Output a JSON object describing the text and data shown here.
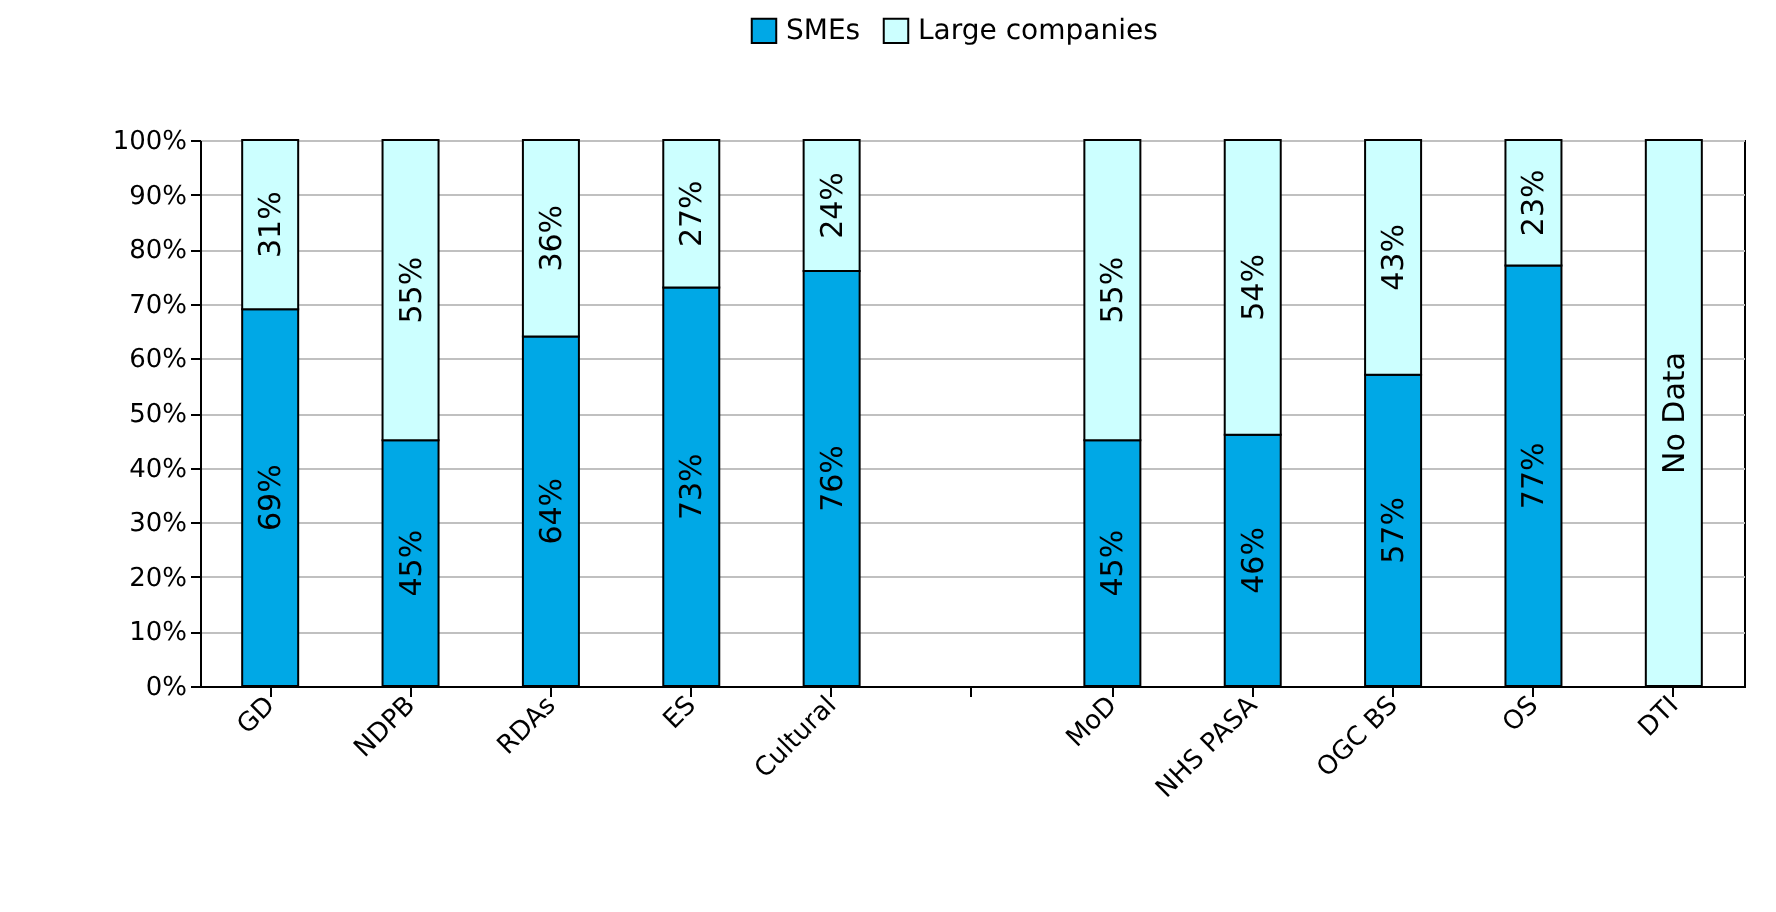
{
  "chart_data": {
    "type": "bar",
    "stacked": true,
    "categories": [
      "GD",
      "NDPB",
      "RDAs",
      "ES",
      "Cultural",
      null,
      "MoD",
      "NHS PASA",
      "OGC BS",
      "OS",
      "DTI"
    ],
    "series": [
      {
        "name": "SMEs",
        "color": "#00a8e6",
        "values": [
          69,
          45,
          64,
          73,
          76,
          null,
          45,
          46,
          57,
          77,
          null
        ],
        "value_labels": [
          "69%",
          "45%",
          "64%",
          "73%",
          "76%",
          null,
          "45%",
          "46%",
          "57%",
          "77%",
          null
        ]
      },
      {
        "name": "Large companies",
        "color": "#ccffff",
        "values": [
          31,
          55,
          36,
          27,
          24,
          null,
          55,
          54,
          43,
          23,
          100
        ],
        "value_labels": [
          "31%",
          "55%",
          "36%",
          "27%",
          "24%",
          null,
          "55%",
          "54%",
          "43%",
          "23%",
          "No Data"
        ]
      }
    ],
    "ylim": [
      0,
      100
    ],
    "yticks": [
      {
        "value": 0,
        "label": "0%"
      },
      {
        "value": 10,
        "label": "10%"
      },
      {
        "value": 20,
        "label": "20%"
      },
      {
        "value": 30,
        "label": "30%"
      },
      {
        "value": 40,
        "label": "40%"
      },
      {
        "value": 50,
        "label": "50%"
      },
      {
        "value": 60,
        "label": "60%"
      },
      {
        "value": 70,
        "label": "70%"
      },
      {
        "value": 80,
        "label": "80%"
      },
      {
        "value": 90,
        "label": "90%"
      },
      {
        "value": 100,
        "label": "100%"
      }
    ],
    "grid": "y",
    "legend": "top"
  }
}
